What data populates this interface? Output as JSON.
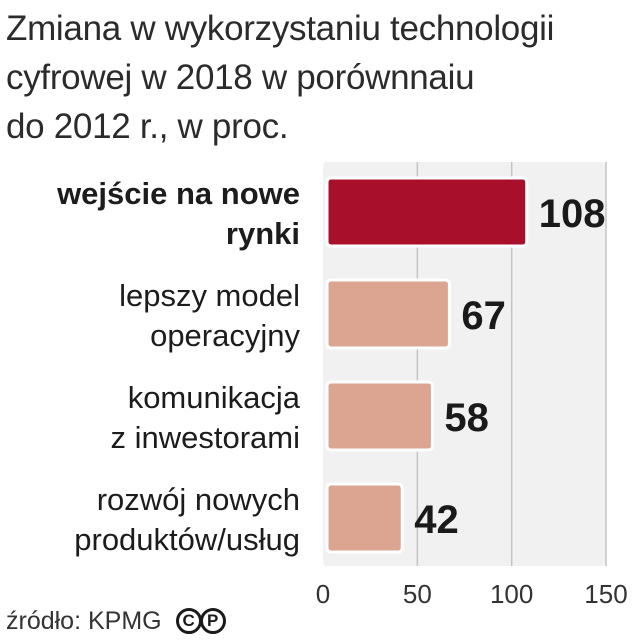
{
  "title_lines": [
    "Zmiana w wykorzystaniu technologii",
    "cyfrowej w 2018 w porównnaiu",
    "do 2012 r., w proc."
  ],
  "chart_data": {
    "type": "bar",
    "orientation": "horizontal",
    "title": "Zmiana w wykorzystaniu technologii cyfrowej w 2018 w porównnaiu do 2012 r., w proc.",
    "categories": [
      [
        "wejście na nowe",
        "rynki"
      ],
      [
        "lepszy model",
        "operacyjny"
      ],
      [
        "komunikacja",
        "z inwestorami"
      ],
      [
        "rozwój nowych",
        "produktów/usług"
      ]
    ],
    "values": [
      108,
      67,
      58,
      42
    ],
    "value_labels": [
      "108",
      "67",
      "58",
      "42"
    ],
    "highlight_index": 0,
    "xlim": [
      0,
      150
    ],
    "xticks": [
      0,
      50,
      100,
      150
    ],
    "xtick_labels": [
      "0",
      "50",
      "100",
      "150"
    ],
    "grid": true,
    "colors": {
      "highlight": "#a80f2a",
      "highlight_stroke": "#7a0a1e",
      "bar": "#dba592",
      "bar_stroke": "#b9826f",
      "plot_bg": "#f1f1f1",
      "grid": "#c4c4c4"
    }
  },
  "footer": {
    "source": "źródło: KPMG",
    "badges": [
      "C",
      "P"
    ]
  }
}
